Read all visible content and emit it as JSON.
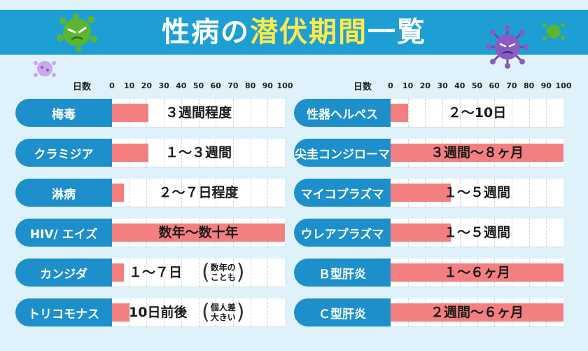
{
  "title": {
    "part1": "性病の",
    "part2": "潜伏期間",
    "part3": "一覧"
  },
  "chart_data": [
    {
      "type": "bar",
      "orientation": "horizontal",
      "xlabel": "日数",
      "xlim": [
        0,
        100
      ],
      "ticks": [
        "0",
        "10",
        "20",
        "30",
        "40",
        "50",
        "60",
        "70",
        "80",
        "90",
        "100"
      ],
      "grid": true,
      "categories": [
        "梅毒",
        "クラミジア",
        "淋病",
        "HIV/ エイズ",
        "カンジダ",
        "トリコモナス"
      ],
      "values": [
        21,
        21,
        7,
        100,
        7,
        10
      ],
      "value_labels": [
        "３週間程度",
        "１～３週間",
        "２～７日程度",
        "数年～数十年",
        "１～７日",
        "10日前後"
      ],
      "notes": [
        null,
        null,
        null,
        null,
        [
          "数年の",
          "ことも"
        ],
        [
          "個人差",
          "大きい"
        ]
      ]
    },
    {
      "type": "bar",
      "orientation": "horizontal",
      "xlabel": "日数",
      "xlim": [
        0,
        100
      ],
      "ticks": [
        "0",
        "10",
        "20",
        "30",
        "40",
        "50",
        "60",
        "70",
        "80",
        "90",
        "100"
      ],
      "grid": true,
      "categories": [
        "性器ヘルペス",
        "尖圭コンジローマ",
        "マイコプラズマ",
        "ウレアプラズマ",
        "Ｂ型肝炎",
        "Ｃ型肝炎"
      ],
      "values": [
        10,
        100,
        35,
        35,
        100,
        100
      ],
      "value_labels": [
        "２～10日",
        "３週間～８ヶ月",
        "１～５週間",
        "１～５週間",
        "１～６ヶ月",
        "２週間～６ヶ月"
      ],
      "notes": [
        null,
        null,
        null,
        null,
        null,
        null
      ]
    }
  ],
  "colors": {
    "header": "#1d9fd4",
    "label_bg": "#1d8fcb",
    "bar": "#f37f80",
    "background": "#dff2fb",
    "highlight": "#ffe94a"
  },
  "icons": [
    "green-germ-icon",
    "purple-virus-icon",
    "small-purple-germ-icon",
    "small-green-germ-icon"
  ]
}
